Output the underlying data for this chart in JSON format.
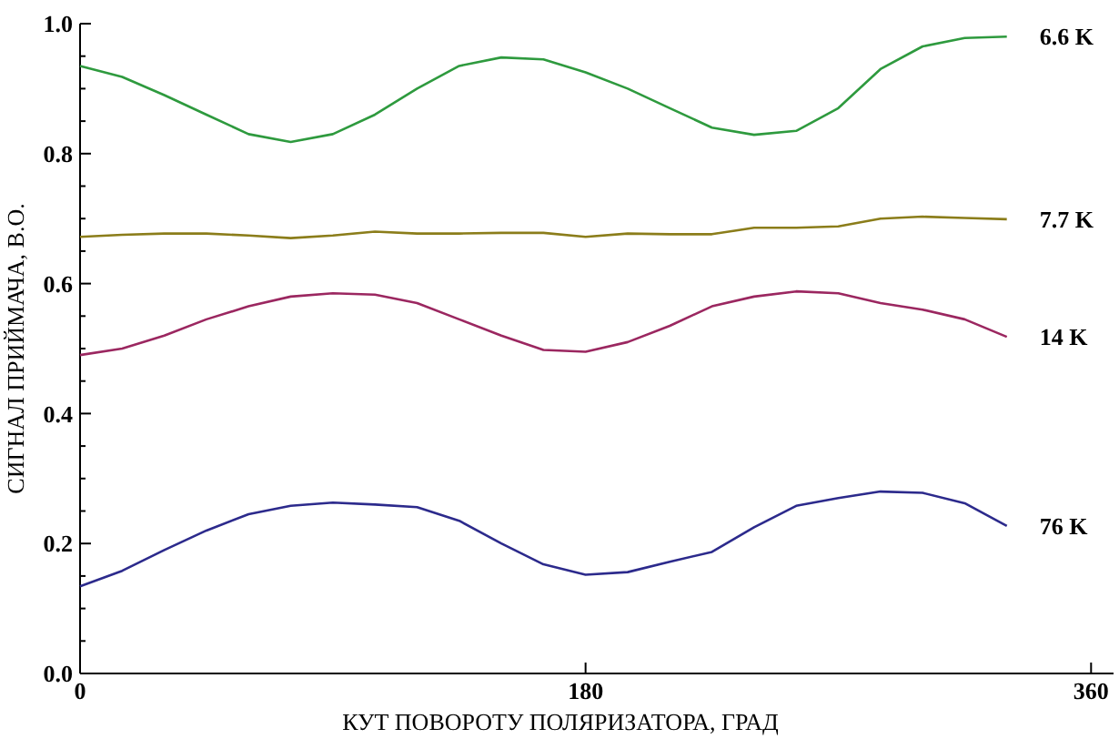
{
  "chart_data": {
    "type": "line",
    "xlabel": "КУТ ПОВОРОТУ ПОЛЯРИЗАТОРА, ГРАД",
    "ylabel": "СИГНАЛ ПРИЙМАЧА, В.О.",
    "x": [
      0,
      15,
      30,
      45,
      60,
      75,
      90,
      105,
      120,
      135,
      150,
      165,
      180,
      195,
      210,
      225,
      240,
      255,
      270,
      285,
      300,
      315,
      330
    ],
    "series": [
      {
        "name": "6.6 K",
        "color": "#2e9a3e",
        "values": [
          0.935,
          0.918,
          0.89,
          0.86,
          0.83,
          0.818,
          0.83,
          0.86,
          0.9,
          0.935,
          0.948,
          0.945,
          0.925,
          0.9,
          0.87,
          0.84,
          0.829,
          0.835,
          0.87,
          0.93,
          0.965,
          0.978,
          0.98
        ]
      },
      {
        "name": "7.7 K",
        "color": "#8b7d1a",
        "values": [
          0.672,
          0.675,
          0.677,
          0.677,
          0.674,
          0.67,
          0.674,
          0.68,
          0.677,
          0.677,
          0.678,
          0.678,
          0.672,
          0.677,
          0.676,
          0.676,
          0.686,
          0.686,
          0.688,
          0.7,
          0.703,
          0.701,
          0.699
        ]
      },
      {
        "name": "14 K",
        "color": "#9b2760",
        "values": [
          0.49,
          0.5,
          0.52,
          0.545,
          0.565,
          0.58,
          0.585,
          0.583,
          0.57,
          0.545,
          0.52,
          0.498,
          0.495,
          0.51,
          0.535,
          0.565,
          0.58,
          0.588,
          0.585,
          0.57,
          0.56,
          0.545,
          0.518
        ]
      },
      {
        "name": "76 K",
        "color": "#2c2a8c",
        "values": [
          0.134,
          0.158,
          0.19,
          0.22,
          0.245,
          0.258,
          0.263,
          0.26,
          0.256,
          0.235,
          0.2,
          0.168,
          0.152,
          0.156,
          0.172,
          0.187,
          0.225,
          0.258,
          0.27,
          0.28,
          0.278,
          0.262,
          0.227
        ]
      }
    ],
    "xlim": [
      0,
      368
    ],
    "xticks": [
      0,
      180,
      360
    ],
    "ylim": [
      0,
      1
    ],
    "yticks": [
      {
        "value": 0,
        "label": "0.0"
      },
      {
        "value": 0.05,
        "label": null
      },
      {
        "value": 0.1,
        "label": null
      },
      {
        "value": 0.15,
        "label": null
      },
      {
        "value": 0.2,
        "label": "0.2"
      },
      {
        "value": 0.25,
        "label": null
      },
      {
        "value": 0.3,
        "label": null
      },
      {
        "value": 0.35,
        "label": null
      },
      {
        "value": 0.4,
        "label": "0.4"
      },
      {
        "value": 0.45,
        "label": null
      },
      {
        "value": 0.5,
        "label": null
      },
      {
        "value": 0.55,
        "label": null
      },
      {
        "value": 0.6,
        "label": "0.6"
      },
      {
        "value": 0.65,
        "label": null
      },
      {
        "value": 0.7,
        "label": null
      },
      {
        "value": 0.75,
        "label": null
      },
      {
        "value": 0.8,
        "label": "0.8"
      },
      {
        "value": 0.85,
        "label": null
      },
      {
        "value": 0.9,
        "label": null
      },
      {
        "value": 0.95,
        "label": null
      },
      {
        "value": 1,
        "label": "1.0"
      }
    ],
    "grid": false,
    "marker": "none",
    "line_style": "solid"
  }
}
